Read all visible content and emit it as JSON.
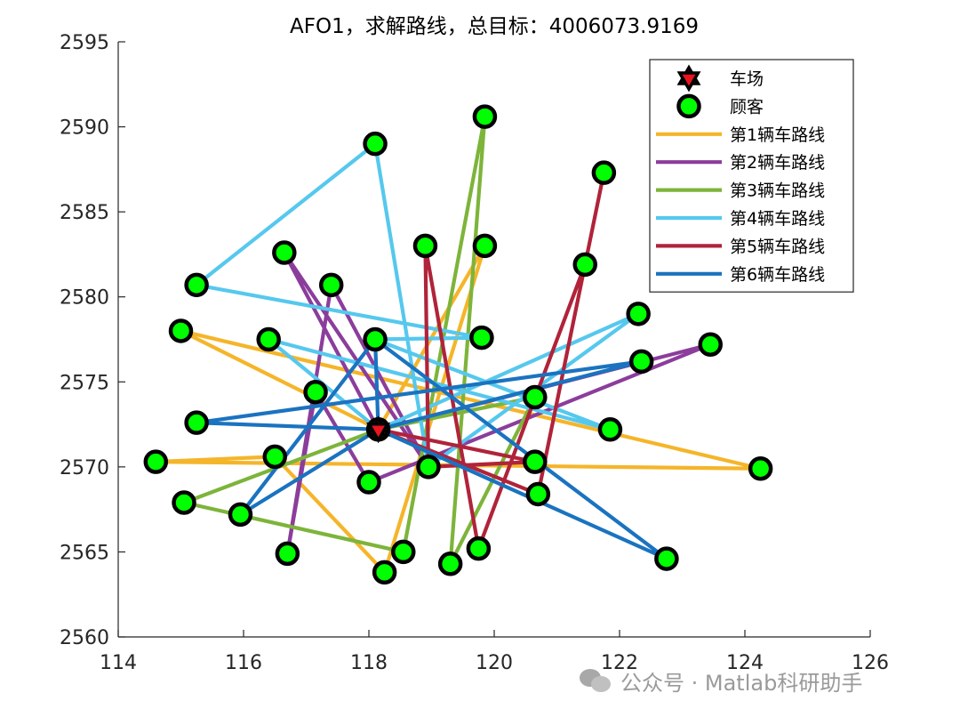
{
  "chart_data": {
    "type": "line",
    "title": "AFO1，求解路线，总目标：4006073.9169",
    "xlabel": "",
    "ylabel": "",
    "xlim": [
      114,
      126
    ],
    "ylim": [
      2560,
      2595
    ],
    "xticks": [
      114,
      116,
      118,
      120,
      122,
      124,
      126
    ],
    "yticks": [
      2560,
      2565,
      2570,
      2575,
      2580,
      2585,
      2590,
      2595
    ],
    "grid": false,
    "legend_position": "top-right",
    "depot": {
      "name": "车场",
      "x": 118.15,
      "y": 2572.2,
      "color": "#e8141e"
    },
    "customer_label": "顾客",
    "customer_color": "#00ff00",
    "customers": [
      [
        114.6,
        2570.3
      ],
      [
        115.0,
        2578.0
      ],
      [
        115.05,
        2567.9
      ],
      [
        115.25,
        2580.7
      ],
      [
        115.25,
        2572.6
      ],
      [
        115.95,
        2567.2
      ],
      [
        116.4,
        2577.5
      ],
      [
        116.5,
        2570.6
      ],
      [
        116.65,
        2582.6
      ],
      [
        116.7,
        2564.9
      ],
      [
        117.15,
        2574.4
      ],
      [
        117.4,
        2580.7
      ],
      [
        118.0,
        2569.1
      ],
      [
        118.1,
        2589.0
      ],
      [
        118.1,
        2577.5
      ],
      [
        118.15,
        2572.2
      ],
      [
        118.25,
        2563.8
      ],
      [
        118.55,
        2565.0
      ],
      [
        118.9,
        2583.0
      ],
      [
        118.95,
        2570.0
      ],
      [
        119.3,
        2564.3
      ],
      [
        119.75,
        2565.2
      ],
      [
        119.8,
        2577.6
      ],
      [
        119.85,
        2583.0
      ],
      [
        119.85,
        2590.6
      ],
      [
        120.65,
        2574.1
      ],
      [
        120.65,
        2570.3
      ],
      [
        120.7,
        2568.4
      ],
      [
        121.45,
        2581.9
      ],
      [
        121.75,
        2587.3
      ],
      [
        121.85,
        2572.2
      ],
      [
        122.3,
        2579.0
      ],
      [
        122.35,
        2576.2
      ],
      [
        122.75,
        2564.6
      ],
      [
        123.45,
        2577.2
      ],
      [
        124.25,
        2569.9
      ]
    ],
    "series": [
      {
        "name": "第1辆车路线",
        "color": "#F5B52A",
        "points": [
          [
            118.15,
            2572.2
          ],
          [
            115.0,
            2578.0
          ],
          [
            124.25,
            2569.9
          ],
          [
            114.6,
            2570.3
          ],
          [
            116.5,
            2570.6
          ],
          [
            118.25,
            2563.8
          ],
          [
            119.85,
            2583.0
          ],
          [
            118.15,
            2572.2
          ]
        ]
      },
      {
        "name": "第2辆车路线",
        "color": "#8B3D9C",
        "points": [
          [
            118.15,
            2572.2
          ],
          [
            116.65,
            2582.6
          ],
          [
            118.95,
            2570.0
          ],
          [
            117.4,
            2580.7
          ],
          [
            116.7,
            2564.9
          ],
          [
            117.15,
            2574.4
          ],
          [
            118.0,
            2569.1
          ],
          [
            123.45,
            2577.2
          ],
          [
            118.15,
            2572.2
          ]
        ]
      },
      {
        "name": "第3辆车路线",
        "color": "#7DB43A",
        "points": [
          [
            118.15,
            2572.2
          ],
          [
            115.05,
            2567.9
          ],
          [
            118.55,
            2565.0
          ],
          [
            119.85,
            2590.6
          ],
          [
            119.3,
            2564.3
          ],
          [
            120.65,
            2574.1
          ],
          [
            118.15,
            2572.2
          ]
        ]
      },
      {
        "name": "第4辆车路线",
        "color": "#56C8EE",
        "points": [
          [
            118.15,
            2572.2
          ],
          [
            116.4,
            2577.5
          ],
          [
            121.85,
            2572.2
          ],
          [
            118.1,
            2577.5
          ],
          [
            119.8,
            2577.6
          ],
          [
            115.25,
            2580.7
          ],
          [
            118.1,
            2589.0
          ],
          [
            118.95,
            2570.0
          ],
          [
            122.3,
            2579.0
          ],
          [
            118.15,
            2572.2
          ]
        ]
      },
      {
        "name": "第5辆车路线",
        "color": "#B0233A",
        "points": [
          [
            118.15,
            2572.2
          ],
          [
            120.7,
            2568.4
          ],
          [
            121.75,
            2587.3
          ],
          [
            121.45,
            2581.9
          ],
          [
            119.75,
            2565.2
          ],
          [
            118.9,
            2583.0
          ],
          [
            118.95,
            2570.0
          ],
          [
            120.65,
            2570.3
          ],
          [
            118.15,
            2572.2
          ]
        ]
      },
      {
        "name": "第6辆车路线",
        "color": "#1A73C0",
        "points": [
          [
            118.15,
            2572.2
          ],
          [
            115.25,
            2572.6
          ],
          [
            122.35,
            2576.2
          ],
          [
            118.15,
            2572.2
          ],
          [
            118.1,
            2577.5
          ],
          [
            122.75,
            2564.6
          ],
          [
            118.15,
            2572.2
          ],
          [
            115.95,
            2567.2
          ],
          [
            118.1,
            2577.5
          ]
        ]
      }
    ]
  },
  "watermark": "公众号 · Matlab科研助手"
}
